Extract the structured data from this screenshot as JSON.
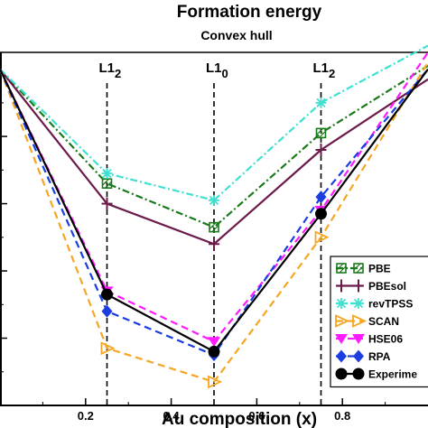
{
  "chart_data": {
    "type": "line",
    "title": "Formation energy",
    "subtitle": "Convex hull",
    "xlabel": "Au composition (x)",
    "ylabel": "",
    "xlim": [
      0,
      1
    ],
    "ylim": [
      -1,
      0.05
    ],
    "x_ticks": [
      "0.2",
      "0.4",
      "0.6",
      "0.8"
    ],
    "grid": false,
    "legend_position": "bottom-right",
    "phase_markers": [
      {
        "x": 0.25,
        "label": "L1",
        "sub": "2"
      },
      {
        "x": 0.5,
        "label": "L1",
        "sub": "0"
      },
      {
        "x": 0.75,
        "label": "L1",
        "sub": "2"
      }
    ],
    "x": [
      0,
      0.25,
      0.5,
      0.75,
      1
    ],
    "series": [
      {
        "name": "PBE",
        "values": [
          0,
          -0.34,
          -0.47,
          -0.19,
          0.01
        ],
        "color": "#1a7a1a",
        "dash": "8,3,2,3",
        "marker": "square-hatch"
      },
      {
        "name": "PBEsol",
        "values": [
          0,
          -0.4,
          -0.52,
          -0.24,
          -0.03
        ],
        "color": "#6b1a4a",
        "dash": "",
        "marker": "plus"
      },
      {
        "name": "revTPSS",
        "values": [
          0,
          -0.31,
          -0.39,
          -0.1,
          0.07
        ],
        "color": "#40e0d0",
        "dash": "8,3,2,3",
        "marker": "star"
      },
      {
        "name": "SCAN",
        "values": [
          0,
          -0.83,
          -0.93,
          -0.5,
          0.02
        ],
        "color": "#f5a623",
        "dash": "8,5",
        "marker": "triangle-right-open"
      },
      {
        "name": "HSE06",
        "values": [
          0,
          -0.66,
          -0.81,
          -0.42,
          0.05
        ],
        "color": "#ff1aff",
        "dash": "8,5",
        "marker": "triangle-down"
      },
      {
        "name": "RPA",
        "values": [
          0,
          -0.72,
          -0.85,
          -0.38,
          0.0
        ],
        "color": "#1a3ee0",
        "dash": "8,5",
        "marker": "diamond"
      },
      {
        "name": "Experime",
        "values": [
          0,
          -0.67,
          -0.84,
          -0.43,
          0.0
        ],
        "color": "#000000",
        "dash": "",
        "marker": "circle"
      }
    ]
  }
}
